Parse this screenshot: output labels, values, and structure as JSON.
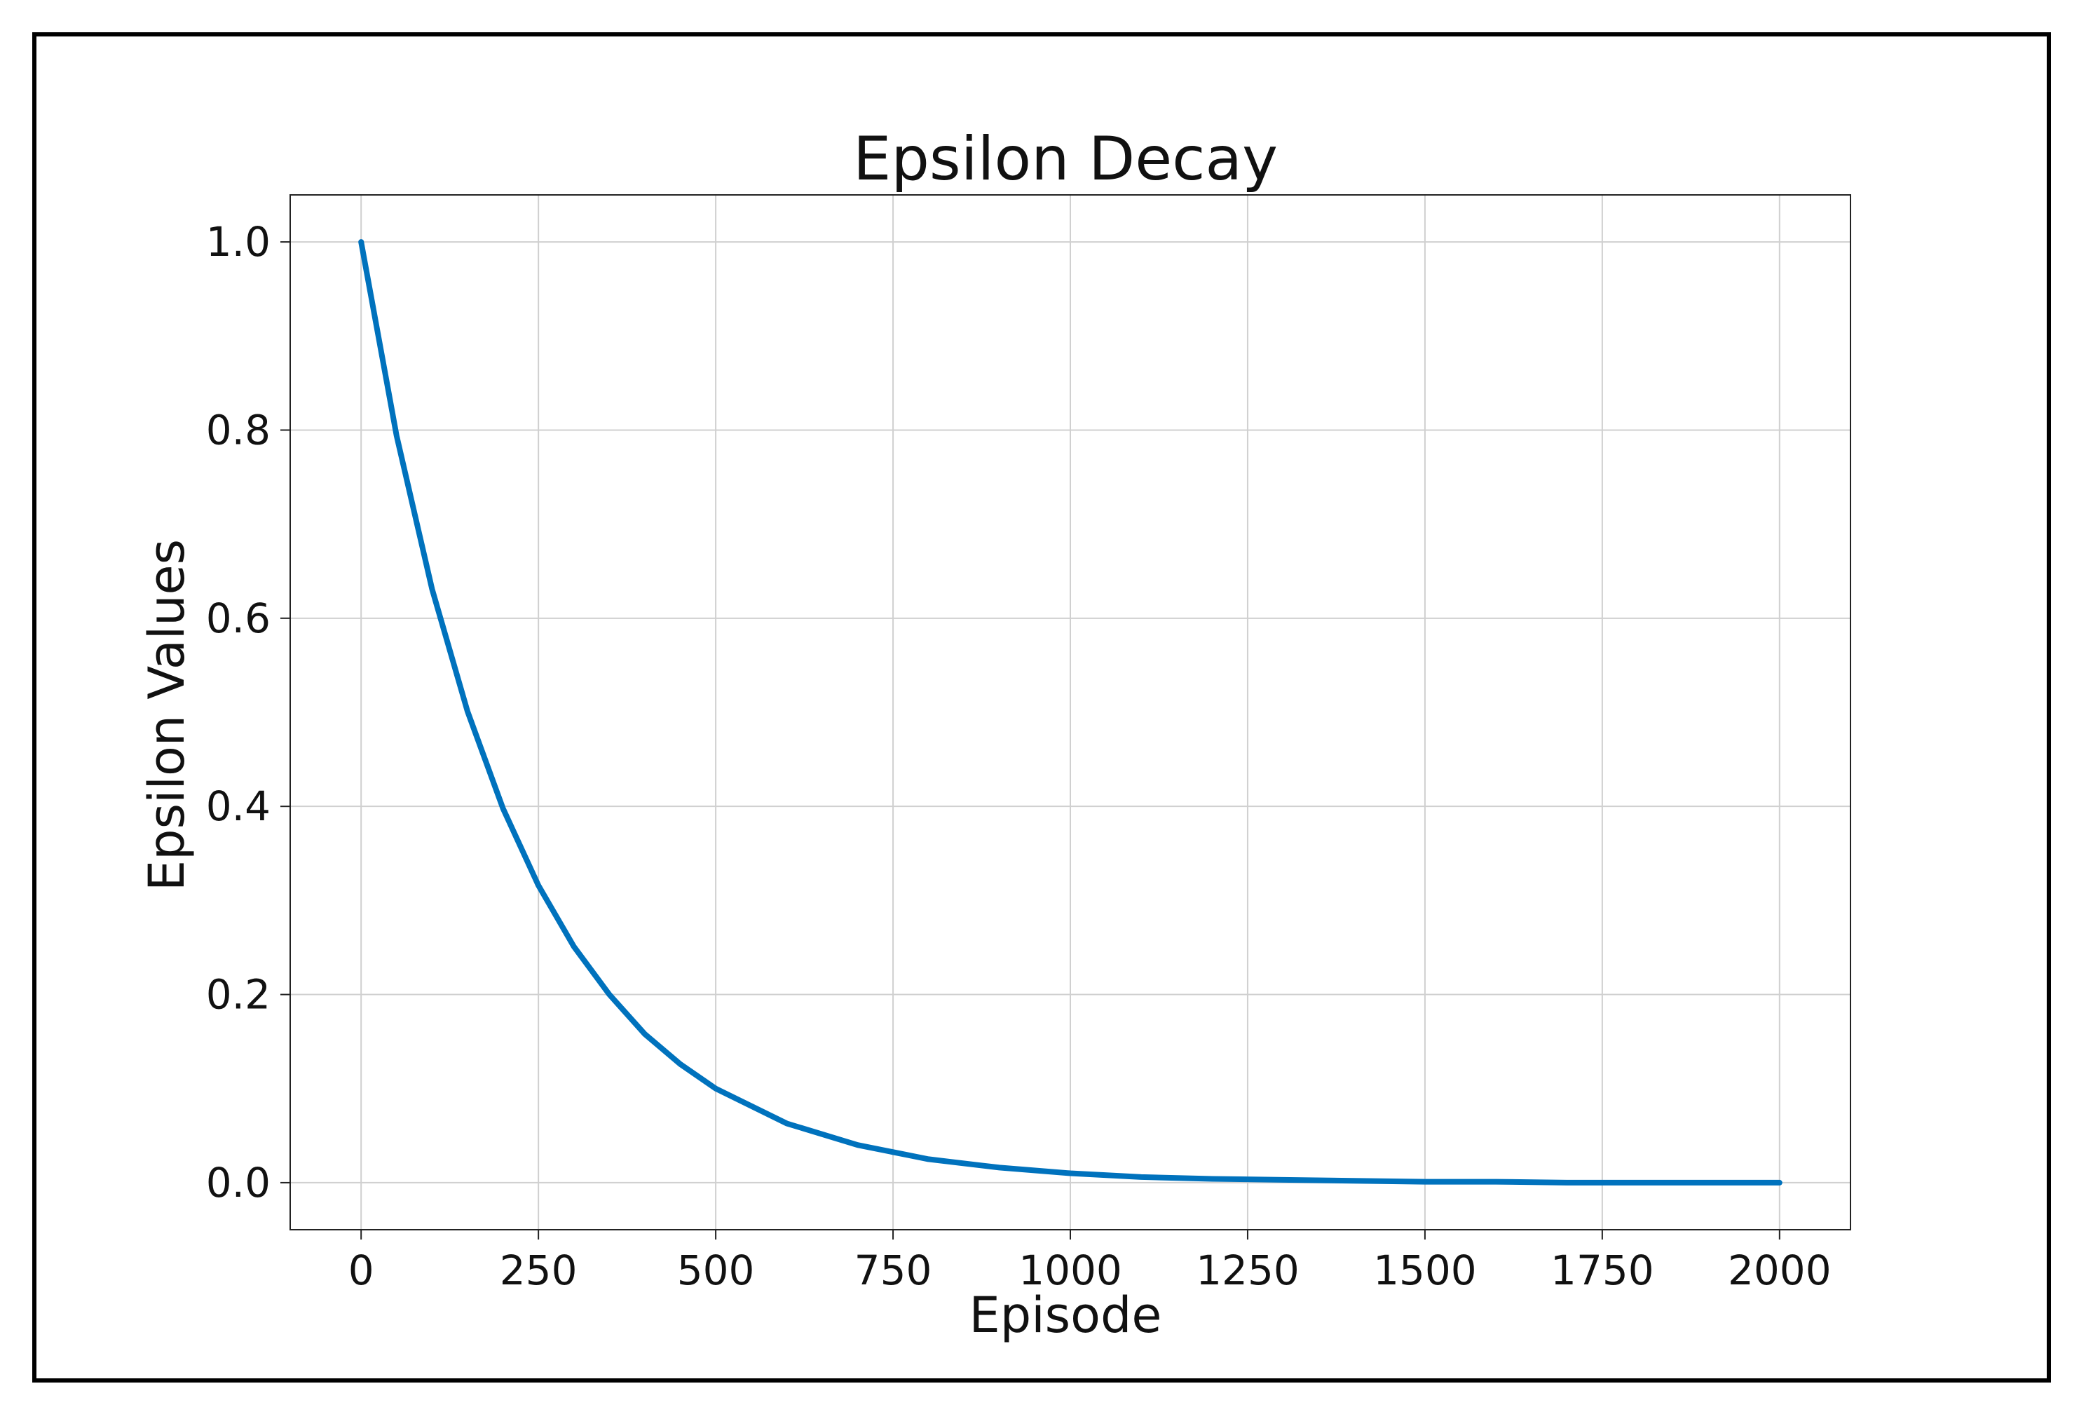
{
  "chart_data": {
    "type": "line",
    "title": "Epsilon Decay",
    "xlabel": "Episode",
    "ylabel": "Epsilon Values",
    "xlim": [
      -100,
      2100
    ],
    "ylim": [
      -0.05,
      1.05
    ],
    "xticks": [
      0,
      250,
      500,
      750,
      1000,
      1250,
      1500,
      1750,
      2000
    ],
    "xtick_labels": [
      "0",
      "250",
      "500",
      "750",
      "1000",
      "1250",
      "1500",
      "1750",
      "2000"
    ],
    "yticks": [
      0.0,
      0.2,
      0.4,
      0.6,
      0.8,
      1.0
    ],
    "ytick_labels": [
      "0.0",
      "0.2",
      "0.4",
      "0.6",
      "0.8",
      "1.0"
    ],
    "grid": true,
    "series": [
      {
        "color": "#0072bd",
        "x": [
          0,
          50,
          100,
          150,
          200,
          250,
          300,
          350,
          400,
          450,
          500,
          600,
          700,
          800,
          900,
          1000,
          1100,
          1200,
          1300,
          1400,
          1500,
          1600,
          1700,
          1800,
          1900,
          2000
        ],
        "y": [
          1.0,
          0.794,
          0.631,
          0.501,
          0.398,
          0.316,
          0.251,
          0.2,
          0.158,
          0.126,
          0.1,
          0.063,
          0.04,
          0.025,
          0.016,
          0.01,
          0.006,
          0.004,
          0.003,
          0.002,
          0.001,
          0.001,
          0.0,
          0.0,
          0.0,
          0.0
        ]
      }
    ]
  }
}
